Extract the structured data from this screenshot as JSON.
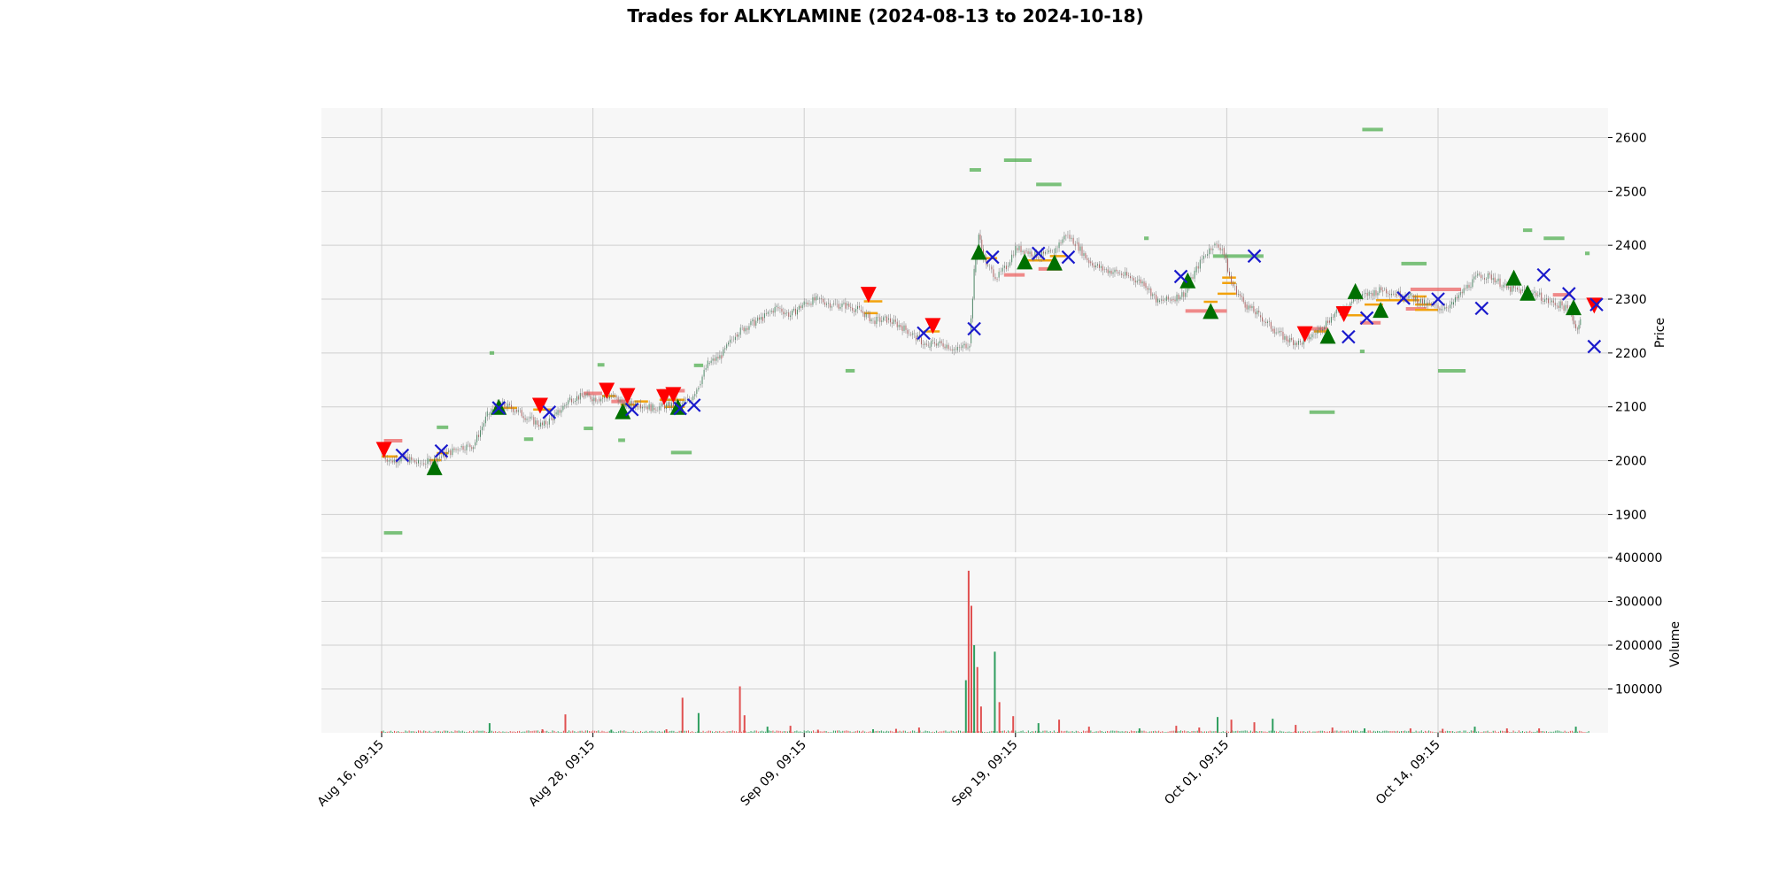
{
  "chart_data": {
    "type": "candlestick",
    "title": "Trades for ALKYLAMINE (2024-08-13 to 2024-10-18)",
    "x_tick_labels": [
      "Aug 16, 09:15",
      "Aug 28, 09:15",
      "Sep 09, 09:15",
      "Sep 19, 09:15",
      "Oct 01, 09:15",
      "Oct 14, 09:15"
    ],
    "price_panel": {
      "ylabel": "Price",
      "ylim": [
        1830,
        2655
      ],
      "yticks": [
        1900,
        2000,
        2100,
        2200,
        2300,
        2400,
        2500,
        2600
      ],
      "grid": true
    },
    "volume_panel": {
      "ylabel": "Volume",
      "ylim": [
        0,
        400000
      ],
      "yticks": [
        100000,
        200000,
        300000,
        400000
      ],
      "grid": true
    },
    "price_path": [
      [
        0,
        2010
      ],
      [
        0.2,
        2000
      ],
      [
        0.5,
        2005
      ],
      [
        0.8,
        1995
      ],
      [
        1.0,
        1998
      ],
      [
        1.3,
        2008
      ],
      [
        1.7,
        2025
      ],
      [
        2.0,
        2028
      ],
      [
        2.3,
        2085
      ],
      [
        2.6,
        2105
      ],
      [
        2.9,
        2095
      ],
      [
        3.2,
        2078
      ],
      [
        3.5,
        2065
      ],
      [
        3.8,
        2085
      ],
      [
        4.1,
        2115
      ],
      [
        4.4,
        2120
      ],
      [
        4.7,
        2115
      ],
      [
        5.0,
        2120
      ],
      [
        5.3,
        2105
      ],
      [
        5.6,
        2105
      ],
      [
        5.9,
        2098
      ],
      [
        6.2,
        2102
      ],
      [
        6.5,
        2105
      ],
      [
        6.7,
        2112
      ],
      [
        6.9,
        2140
      ],
      [
        7.1,
        2180
      ],
      [
        7.4,
        2195
      ],
      [
        7.7,
        2235
      ],
      [
        8.0,
        2252
      ],
      [
        8.3,
        2265
      ],
      [
        8.6,
        2285
      ],
      [
        8.9,
        2270
      ],
      [
        9.2,
        2292
      ],
      [
        9.5,
        2300
      ],
      [
        9.8,
        2290
      ],
      [
        10.1,
        2288
      ],
      [
        10.4,
        2280
      ],
      [
        10.7,
        2260
      ],
      [
        11.0,
        2262
      ],
      [
        11.3,
        2250
      ],
      [
        11.6,
        2232
      ],
      [
        11.9,
        2210
      ],
      [
        12.0,
        2220
      ],
      [
        12.3,
        2215
      ],
      [
        12.5,
        2205
      ],
      [
        12.8,
        2218
      ],
      [
        12.9,
        2350
      ],
      [
        13.0,
        2420
      ],
      [
        13.1,
        2380
      ],
      [
        13.2,
        2360
      ],
      [
        13.4,
        2340
      ],
      [
        13.6,
        2360
      ],
      [
        13.8,
        2395
      ],
      [
        14.0,
        2390
      ],
      [
        14.3,
        2380
      ],
      [
        14.6,
        2385
      ],
      [
        14.9,
        2420
      ],
      [
        15.1,
        2405
      ],
      [
        15.4,
        2370
      ],
      [
        15.7,
        2355
      ],
      [
        16.0,
        2350
      ],
      [
        16.3,
        2340
      ],
      [
        16.6,
        2330
      ],
      [
        16.9,
        2295
      ],
      [
        17.2,
        2300
      ],
      [
        17.5,
        2312
      ],
      [
        17.7,
        2350
      ],
      [
        17.9,
        2380
      ],
      [
        18.1,
        2400
      ],
      [
        18.3,
        2395
      ],
      [
        18.5,
        2330
      ],
      [
        18.8,
        2290
      ],
      [
        19.1,
        2270
      ],
      [
        19.4,
        2245
      ],
      [
        19.7,
        2225
      ],
      [
        20.0,
        2218
      ],
      [
        20.3,
        2235
      ],
      [
        20.6,
        2260
      ],
      [
        20.9,
        2282
      ],
      [
        21.2,
        2300
      ],
      [
        21.5,
        2310
      ],
      [
        21.8,
        2318
      ],
      [
        22.1,
        2310
      ],
      [
        22.4,
        2305
      ],
      [
        22.7,
        2292
      ],
      [
        23.0,
        2283
      ],
      [
        23.3,
        2290
      ],
      [
        23.6,
        2320
      ],
      [
        23.9,
        2345
      ],
      [
        24.2,
        2340
      ],
      [
        24.5,
        2320
      ],
      [
        24.8,
        2315
      ],
      [
        25.1,
        2312
      ],
      [
        25.4,
        2295
      ],
      [
        25.7,
        2288
      ],
      [
        25.9,
        2275
      ],
      [
        26.0,
        2245
      ],
      [
        26.1,
        2260
      ]
    ],
    "volume_spikes": [
      [
        0,
        3000
      ],
      [
        2.35,
        22000
      ],
      [
        3.5,
        8000
      ],
      [
        4.0,
        42000
      ],
      [
        5.0,
        7000
      ],
      [
        6.2,
        8000
      ],
      [
        6.55,
        80000
      ],
      [
        6.9,
        45000
      ],
      [
        7.8,
        106000
      ],
      [
        7.9,
        40000
      ],
      [
        8.4,
        14000
      ],
      [
        8.9,
        16000
      ],
      [
        9.5,
        7000
      ],
      [
        10.7,
        8000
      ],
      [
        11.2,
        9000
      ],
      [
        11.7,
        12000
      ],
      [
        12.72,
        120000
      ],
      [
        12.78,
        370000
      ],
      [
        12.84,
        290000
      ],
      [
        12.9,
        200000
      ],
      [
        12.97,
        150000
      ],
      [
        13.05,
        60000
      ],
      [
        13.35,
        185000
      ],
      [
        13.45,
        70000
      ],
      [
        13.75,
        38000
      ],
      [
        14.3,
        22000
      ],
      [
        14.75,
        30000
      ],
      [
        15.4,
        14000
      ],
      [
        16.5,
        10000
      ],
      [
        17.3,
        16000
      ],
      [
        17.8,
        12000
      ],
      [
        18.2,
        36000
      ],
      [
        18.5,
        30000
      ],
      [
        19.0,
        24000
      ],
      [
        19.4,
        32000
      ],
      [
        19.9,
        18000
      ],
      [
        20.7,
        12000
      ],
      [
        21.4,
        10000
      ],
      [
        22.4,
        10000
      ],
      [
        23.1,
        9000
      ],
      [
        23.8,
        14000
      ],
      [
        24.5,
        10000
      ],
      [
        25.2,
        10000
      ],
      [
        26.0,
        14000
      ]
    ],
    "markers": {
      "buy_entry": [
        [
          1.15,
          1988
        ],
        [
          2.55,
          2100
        ],
        [
          5.25,
          2092
        ],
        [
          6.45,
          2100
        ],
        [
          13.0,
          2388
        ],
        [
          14.0,
          2370
        ],
        [
          14.65,
          2368
        ],
        [
          17.55,
          2335
        ],
        [
          18.05,
          2278
        ],
        [
          20.6,
          2232
        ],
        [
          21.2,
          2315
        ],
        [
          21.75,
          2280
        ],
        [
          24.65,
          2340
        ],
        [
          24.95,
          2312
        ],
        [
          25.95,
          2285
        ]
      ],
      "sell_entry": [
        [
          0.05,
          2020
        ],
        [
          3.45,
          2102
        ],
        [
          4.9,
          2130
        ],
        [
          5.35,
          2120
        ],
        [
          6.15,
          2118
        ],
        [
          6.35,
          2122
        ],
        [
          10.6,
          2308
        ],
        [
          12.0,
          2250
        ],
        [
          20.1,
          2235
        ],
        [
          20.95,
          2272
        ],
        [
          26.4,
          2288
        ]
      ],
      "exit": [
        [
          0.45,
          2010
        ],
        [
          1.3,
          2018
        ],
        [
          2.55,
          2098
        ],
        [
          3.65,
          2090
        ],
        [
          5.45,
          2095
        ],
        [
          6.5,
          2097
        ],
        [
          6.8,
          2103
        ],
        [
          11.8,
          2237
        ],
        [
          12.9,
          2245
        ],
        [
          13.3,
          2378
        ],
        [
          14.3,
          2385
        ],
        [
          14.95,
          2378
        ],
        [
          17.4,
          2342
        ],
        [
          19.0,
          2380
        ],
        [
          21.05,
          2230
        ],
        [
          21.45,
          2265
        ],
        [
          22.25,
          2302
        ],
        [
          23.0,
          2300
        ],
        [
          23.95,
          2283
        ],
        [
          25.3,
          2345
        ],
        [
          25.85,
          2310
        ],
        [
          26.45,
          2290
        ],
        [
          26.4,
          2212
        ]
      ]
    },
    "level_lines": {
      "green": [
        [
          0.05,
          0.45,
          1866
        ],
        [
          1.2,
          1.45,
          2062
        ],
        [
          2.35,
          2.45,
          2200
        ],
        [
          3.1,
          3.3,
          2040
        ],
        [
          4.4,
          4.6,
          2060
        ],
        [
          4.7,
          4.85,
          2178
        ],
        [
          5.15,
          5.3,
          2038
        ],
        [
          6.3,
          6.75,
          2015
        ],
        [
          6.8,
          7.0,
          2177
        ],
        [
          10.1,
          10.3,
          2167
        ],
        [
          12.8,
          13.05,
          2540
        ],
        [
          13.55,
          14.15,
          2558
        ],
        [
          14.25,
          14.8,
          2513
        ],
        [
          16.6,
          16.7,
          2413
        ],
        [
          18.1,
          19.2,
          2380
        ],
        [
          20.2,
          20.75,
          2090
        ],
        [
          21.35,
          21.8,
          2615
        ],
        [
          21.3,
          21.4,
          2203
        ],
        [
          22.2,
          22.75,
          2366
        ],
        [
          23.0,
          23.6,
          2167
        ],
        [
          24.85,
          25.05,
          2428
        ],
        [
          25.3,
          25.75,
          2413
        ],
        [
          26.2,
          26.3,
          2385
        ]
      ],
      "red": [
        [
          0.05,
          0.45,
          2037
        ],
        [
          4.4,
          4.8,
          2125
        ],
        [
          5.0,
          5.35,
          2110
        ],
        [
          6.05,
          6.6,
          2130
        ],
        [
          13.55,
          14.0,
          2345
        ],
        [
          14.3,
          14.8,
          2356
        ],
        [
          17.5,
          18.4,
          2278
        ],
        [
          20.1,
          20.6,
          2245
        ],
        [
          21.3,
          21.75,
          2256
        ],
        [
          22.3,
          22.75,
          2282
        ],
        [
          22.4,
          23.5,
          2318
        ],
        [
          25.5,
          25.9,
          2308
        ]
      ],
      "orange": [
        [
          0.0,
          0.35,
          2008
        ],
        [
          1.05,
          1.3,
          2001
        ],
        [
          1.2,
          1.45,
          2014
        ],
        [
          2.45,
          2.95,
          2098
        ],
        [
          3.3,
          3.7,
          2095
        ],
        [
          4.8,
          5.1,
          2120
        ],
        [
          5.2,
          5.55,
          2104
        ],
        [
          5.5,
          5.8,
          2110
        ],
        [
          6.05,
          6.6,
          2113
        ],
        [
          6.15,
          6.6,
          2100
        ],
        [
          10.5,
          10.9,
          2296
        ],
        [
          10.5,
          10.8,
          2274
        ],
        [
          11.8,
          12.15,
          2240
        ],
        [
          13.1,
          13.4,
          2376
        ],
        [
          14.0,
          14.65,
          2372
        ],
        [
          14.55,
          14.9,
          2380
        ],
        [
          17.9,
          18.2,
          2295
        ],
        [
          18.2,
          18.6,
          2310
        ],
        [
          18.3,
          18.6,
          2330
        ],
        [
          18.3,
          18.6,
          2340
        ],
        [
          20.3,
          20.6,
          2240
        ],
        [
          21.0,
          21.4,
          2270
        ],
        [
          21.4,
          21.8,
          2290
        ],
        [
          21.65,
          22.6,
          2298
        ],
        [
          22.45,
          22.75,
          2305
        ],
        [
          22.5,
          22.9,
          2290
        ],
        [
          22.5,
          23.0,
          2280
        ]
      ]
    }
  }
}
